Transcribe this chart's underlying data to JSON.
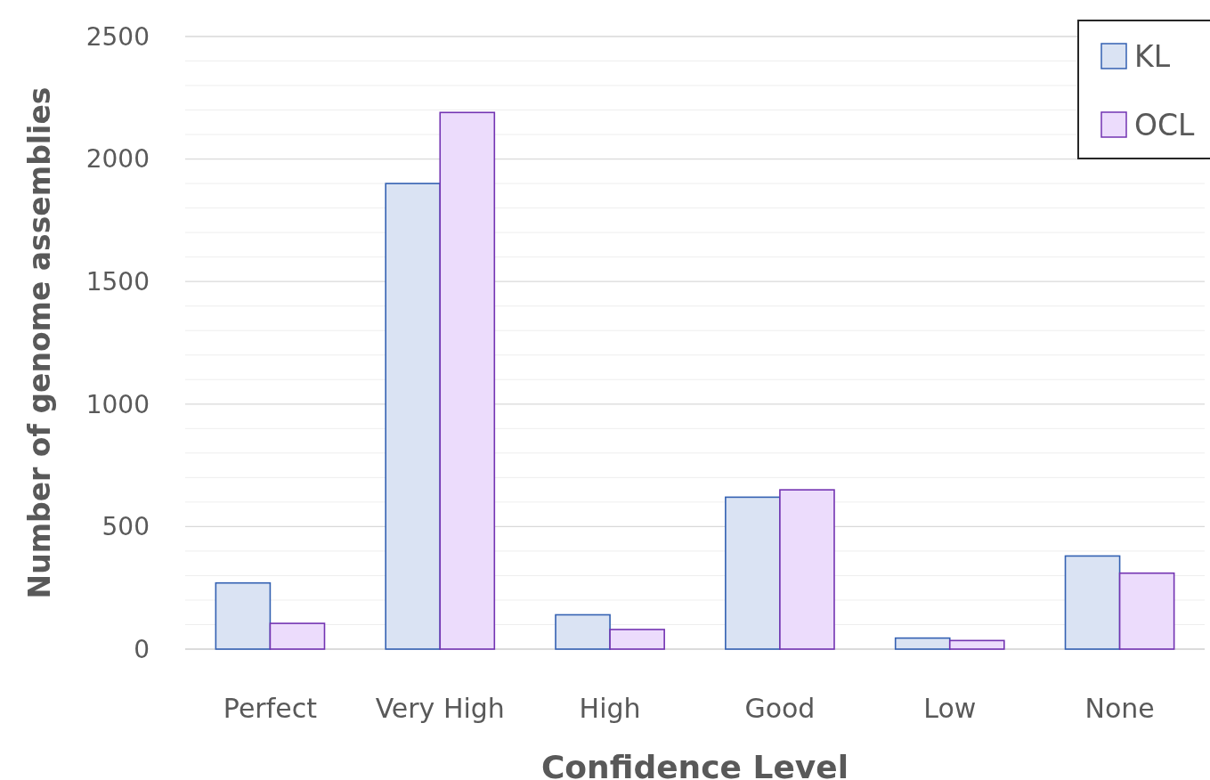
{
  "chart_data": {
    "type": "bar",
    "xlabel": "Confidence Level",
    "ylabel": "Number of genome assemblies",
    "categories": [
      "Perfect",
      "Very High",
      "High",
      "Good",
      "Low",
      "None"
    ],
    "series": [
      {
        "name": "KL",
        "color": "#dae3f3",
        "values": [
          270,
          1900,
          140,
          620,
          45,
          380
        ]
      },
      {
        "name": "OCL",
        "color": "#ecdcfc",
        "values": [
          105,
          2190,
          80,
          650,
          35,
          310
        ]
      }
    ],
    "ylim": [
      0,
      2500
    ],
    "yticks": [
      0,
      {
        "value": 100,
        "label": null
      },
      {
        "value": 200,
        "label": null
      },
      {
        "value": 300,
        "label": null
      },
      {
        "value": 400,
        "label": null
      },
      500,
      {
        "value": 600,
        "label": null
      },
      {
        "value": 700,
        "label": null
      },
      {
        "value": 800,
        "label": null
      },
      {
        "value": 900,
        "label": null
      },
      1000,
      {
        "value": 1100,
        "label": null
      },
      {
        "value": 1200,
        "label": null
      },
      {
        "value": 1300,
        "label": null
      },
      {
        "value": 1400,
        "label": null
      },
      1500,
      {
        "value": 1600,
        "label": null
      },
      {
        "value": 1700,
        "label": null
      },
      {
        "value": 1800,
        "label": null
      },
      {
        "value": 1900,
        "label": null
      },
      2000,
      {
        "value": 2100,
        "label": null
      },
      {
        "value": 2200,
        "label": null
      },
      {
        "value": 2300,
        "label": null
      },
      {
        "value": 2400,
        "label": null
      },
      2500
    ],
    "grid": true,
    "legend": "top right"
  }
}
